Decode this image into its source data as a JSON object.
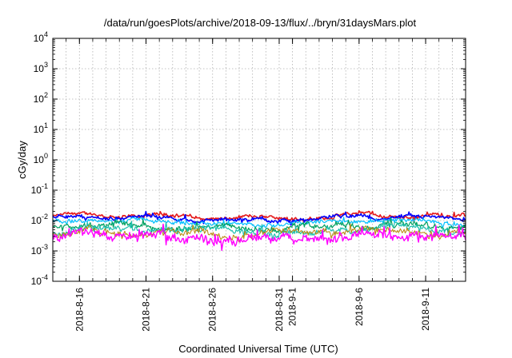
{
  "chart_data": {
    "type": "line",
    "title": "/data/run/goesPlots/archive/2018-09-13/flux/../bryn/31daysMars.plot",
    "xlabel": "Coordinated Universal Time (UTC)",
    "ylabel": "cGy/day",
    "yscale": "log",
    "ylim": [
      0.0001,
      10000
    ],
    "y_ticks": [
      {
        "base": "10",
        "exp": "-4"
      },
      {
        "base": "10",
        "exp": "-3"
      },
      {
        "base": "10",
        "exp": "-2"
      },
      {
        "base": "10",
        "exp": "-1"
      },
      {
        "base": "10",
        "exp": "0"
      },
      {
        "base": "10",
        "exp": "1"
      },
      {
        "base": "10",
        "exp": "2"
      },
      {
        "base": "10",
        "exp": "3"
      },
      {
        "base": "10",
        "exp": "4"
      }
    ],
    "xlim": [
      "2018-08-14",
      "2018-09-14"
    ],
    "x_ticks": [
      "2018-8-16",
      "2018-8-21",
      "2018-8-26",
      "2018-8-31",
      "2018-9-1",
      "2018-9-6",
      "2018-9-11"
    ],
    "x_tick_dates": [
      "2018-08-16",
      "2018-08-21",
      "2018-08-26",
      "2018-08-31",
      "2018-09-01",
      "2018-09-06",
      "2018-09-11"
    ],
    "grid": true,
    "series": [
      {
        "color": "#e41a1c",
        "level": 0.0135,
        "amplitude": 0.08,
        "width": 1.6
      },
      {
        "color": "#0000ff",
        "level": 0.0118,
        "amplitude": 0.08,
        "width": 1.6
      },
      {
        "color": "#00bfff",
        "level": 0.0085,
        "amplitude": 0.1,
        "width": 1.2
      },
      {
        "color": "#00a060",
        "level": 0.0062,
        "amplitude": 0.13,
        "width": 1.2
      },
      {
        "color": "#20c0b0",
        "level": 0.005,
        "amplitude": 0.14,
        "width": 1.2
      },
      {
        "color": "#b8860b",
        "level": 0.004,
        "amplitude": 0.15,
        "width": 1.0
      },
      {
        "color": "#ff00ff",
        "level": 0.0028,
        "amplitude": 0.2,
        "width": 1.4
      }
    ]
  }
}
